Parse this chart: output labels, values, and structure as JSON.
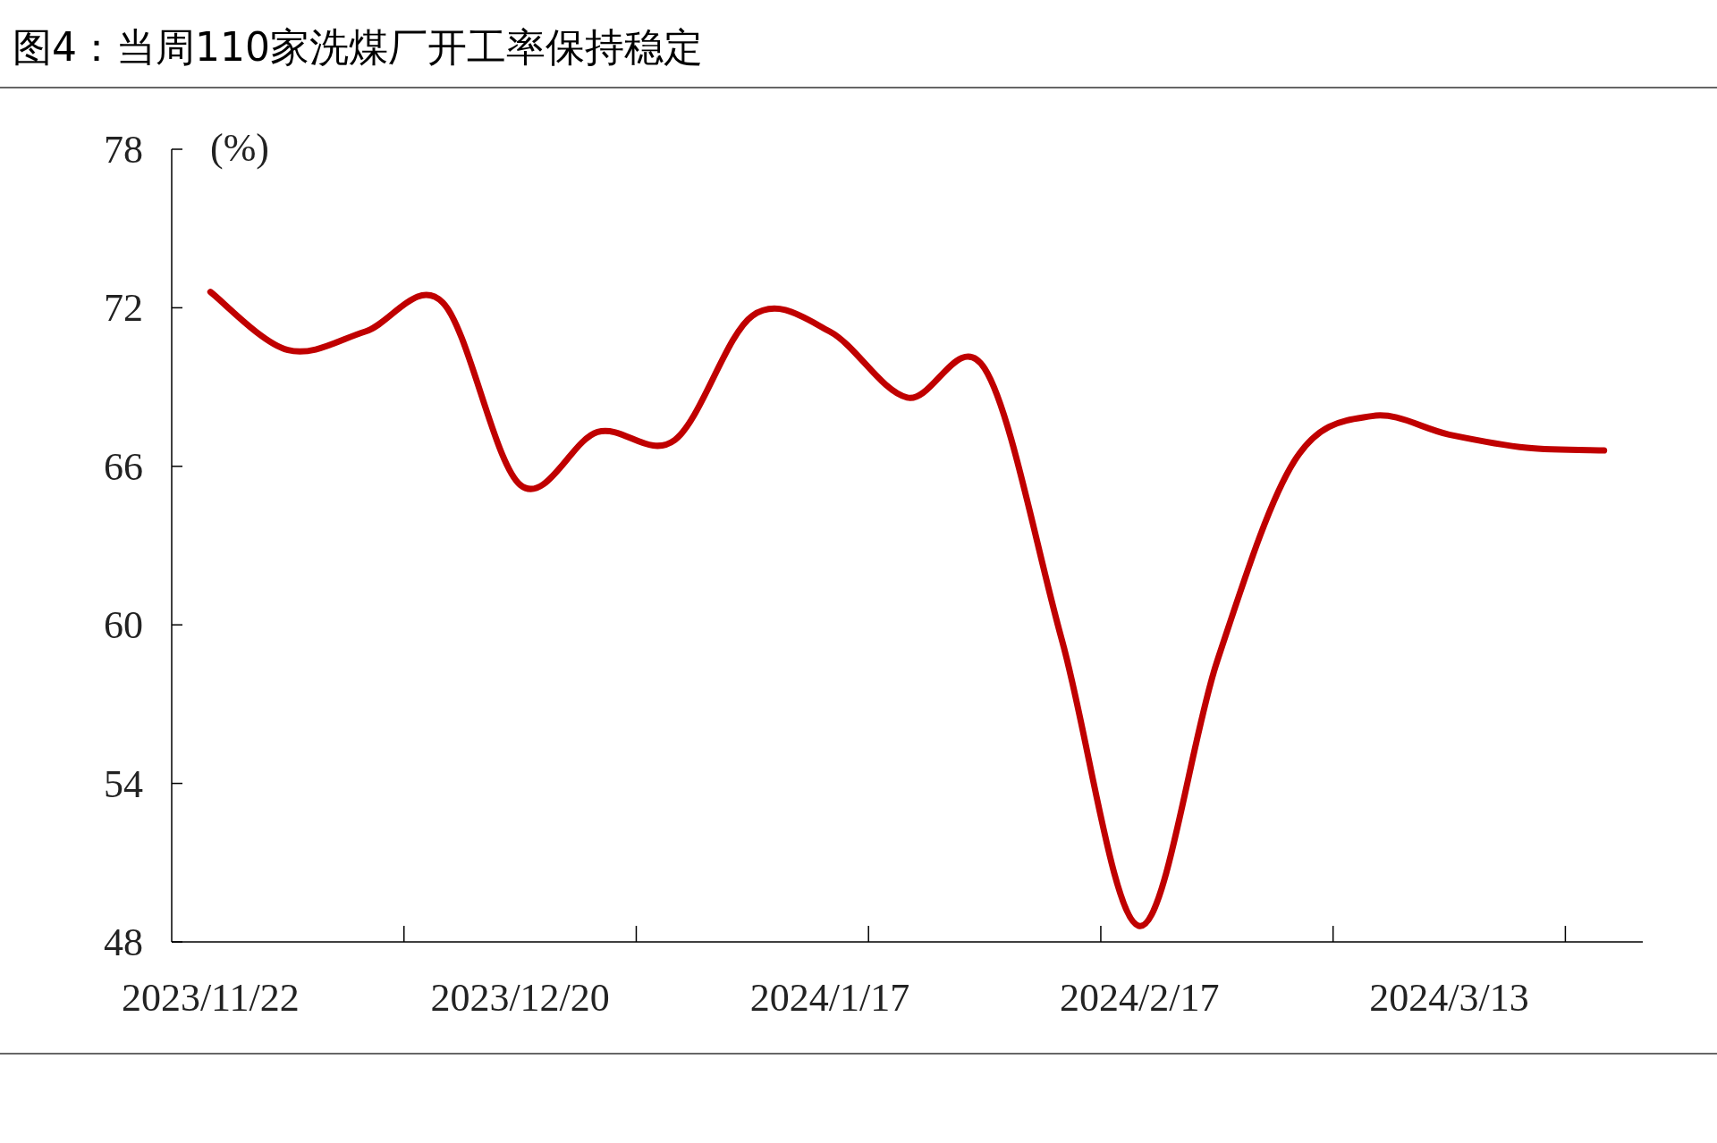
{
  "chart_data": {
    "type": "line",
    "title": "图4：当周110家洗煤厂开工率保持稳定",
    "ylabel": "(%)",
    "categories": [
      "2023/11/22",
      null,
      null,
      null,
      "2023/12/20",
      null,
      null,
      null,
      "2024/1/17",
      null,
      null,
      null,
      "2024/2/17",
      null,
      null,
      null,
      "2024/3/13",
      null,
      null
    ],
    "series": [
      {
        "color": "#c00000",
        "values": [
          72.6,
          70.4,
          71.1,
          72.2,
          65.3,
          67.3,
          67.0,
          71.7,
          71.1,
          68.6,
          69.7,
          59.4,
          48.6,
          58.6,
          66.2,
          67.9,
          67.2,
          66.7,
          66.6
        ]
      }
    ],
    "ylim": [
      48,
      78
    ],
    "yticks": [
      48,
      54,
      60,
      66,
      72,
      78
    ]
  }
}
